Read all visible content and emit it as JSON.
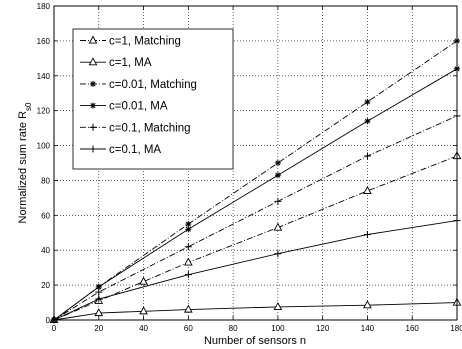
{
  "chart_data": {
    "type": "line",
    "title": "",
    "xlabel": "Number of sensors n",
    "ylabel_main": "Normalized sum rate R",
    "ylabel_sub": "s0",
    "xlim": [
      0,
      180
    ],
    "ylim": [
      0,
      180
    ],
    "x_ticks": [
      0,
      20,
      40,
      60,
      80,
      100,
      120,
      140,
      160,
      180
    ],
    "y_ticks": [
      0,
      20,
      40,
      60,
      80,
      100,
      120,
      140,
      160,
      180
    ],
    "grid": "on (dotted)",
    "legend_position": "top-left",
    "series": [
      {
        "name": "c=1, Matching",
        "marker": "triangle",
        "line": "dashdot",
        "x": [
          0,
          20,
          40,
          60,
          100,
          140,
          180
        ],
        "y": [
          0,
          11,
          22,
          33,
          53,
          74,
          94
        ]
      },
      {
        "name": "c=1, MA",
        "marker": "triangle",
        "line": "solid",
        "x": [
          0,
          20,
          40,
          60,
          100,
          140,
          180
        ],
        "y": [
          0,
          4,
          5,
          6,
          7.5,
          8.5,
          10
        ]
      },
      {
        "name": "c=0.01, Matching",
        "marker": "star",
        "line": "dashdot",
        "x": [
          0,
          20,
          60,
          100,
          140,
          180
        ],
        "y": [
          0,
          19,
          55,
          90,
          125,
          160
        ]
      },
      {
        "name": "c=0.01, MA",
        "marker": "star",
        "line": "solid",
        "x": [
          0,
          20,
          60,
          100,
          140,
          180
        ],
        "y": [
          0,
          19,
          52,
          83,
          114,
          144
        ]
      },
      {
        "name": "c=0.1, Matching",
        "marker": "plus",
        "line": "dashdot",
        "x": [
          0,
          20,
          60,
          100,
          140,
          180
        ],
        "y": [
          0,
          16,
          42,
          68,
          94,
          117
        ]
      },
      {
        "name": "c=0.1, MA",
        "marker": "plus",
        "line": "solid",
        "x": [
          0,
          20,
          60,
          100,
          140,
          180
        ],
        "y": [
          0,
          12,
          26,
          38,
          49,
          57
        ]
      }
    ]
  }
}
